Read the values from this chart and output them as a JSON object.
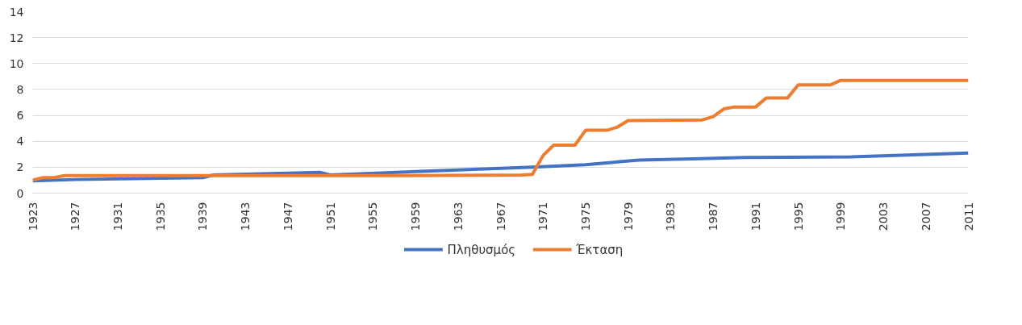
{
  "chart_data": {
    "type": "line",
    "xlim": [
      1923,
      2011
    ],
    "xticks": [
      1923,
      1927,
      1931,
      1935,
      1939,
      1943,
      1947,
      1951,
      1955,
      1959,
      1963,
      1967,
      1971,
      1975,
      1979,
      1983,
      1987,
      1991,
      1995,
      1999,
      2003,
      2007,
      2011
    ],
    "ylim": [
      0,
      14
    ],
    "yticks": [
      0,
      2,
      4,
      6,
      8,
      10,
      12,
      14
    ],
    "grid": "y",
    "legend": "bottom",
    "marker": "none",
    "line_style": "solid",
    "series": [
      {
        "name": "Πληθυσμός",
        "color": "#4472c4",
        "x": [
          1923,
          1927,
          1939,
          1940,
          1950,
          1951,
          1960,
          1970,
          1975,
          1980,
          1985,
          1990,
          2000,
          2011
        ],
        "values": [
          0.95,
          1.05,
          1.2,
          1.4,
          1.6,
          1.4,
          1.7,
          2.0,
          2.2,
          2.55,
          2.65,
          2.75,
          2.8,
          3.1
        ]
      },
      {
        "name": "Έκταση",
        "color": "#ed7d31",
        "x": [
          1923,
          1924,
          1925,
          1926,
          1958,
          1969,
          1970,
          1971,
          1972,
          1974,
          1975,
          1977,
          1978,
          1979,
          1986,
          1987,
          1988,
          1989,
          1991,
          1992,
          1994,
          1995,
          1998,
          1999,
          2011
        ],
        "values": [
          1.0,
          1.2,
          1.2,
          1.35,
          1.35,
          1.4,
          1.45,
          2.9,
          3.7,
          3.7,
          4.85,
          4.85,
          5.1,
          5.6,
          5.65,
          5.9,
          6.5,
          6.65,
          6.65,
          7.35,
          7.35,
          8.35,
          8.35,
          8.7,
          8.7
        ]
      }
    ]
  }
}
